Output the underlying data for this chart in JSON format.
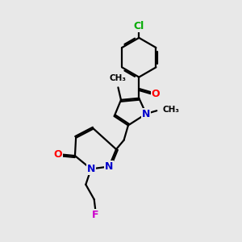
{
  "bg_color": "#e8e8e8",
  "atom_colors": {
    "N": "#0000cc",
    "O": "#ff0000",
    "Cl": "#00aa00",
    "F": "#cc00cc"
  },
  "bond_color": "#000000",
  "bond_width": 1.6,
  "font_size": 8.5
}
